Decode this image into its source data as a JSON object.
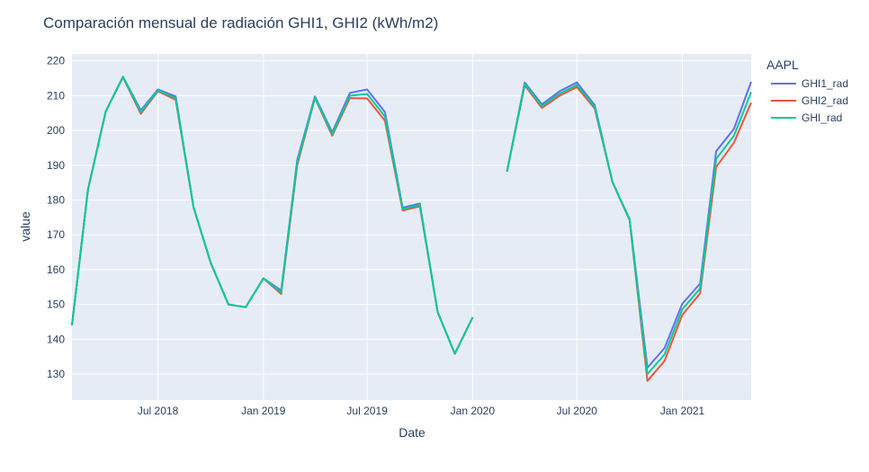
{
  "chart_data": {
    "type": "line",
    "title": "Comparación mensual de radiación GHI1, GHI2 (kWh/m2)",
    "xlabel": "Date",
    "ylabel": "value",
    "legend_title": "AAPL",
    "legend_position": "top-right",
    "xlim": [
      "2018-02-01",
      "2021-05-01"
    ],
    "ylim": [
      122.5,
      222
    ],
    "x_ticks": [
      {
        "date": "2018-07-01",
        "label": "Jul 2018"
      },
      {
        "date": "2019-01-01",
        "label": "Jan 2019"
      },
      {
        "date": "2019-07-01",
        "label": "Jul 2019"
      },
      {
        "date": "2020-01-01",
        "label": "Jan 2020"
      },
      {
        "date": "2020-07-01",
        "label": "Jul 2020"
      },
      {
        "date": "2021-01-01",
        "label": "Jan 2021"
      }
    ],
    "y_ticks": [
      130,
      140,
      150,
      160,
      170,
      180,
      190,
      200,
      210,
      220
    ],
    "grid": true,
    "plot_background": "#e5ecf6",
    "x": [
      "2018-02-01",
      "2018-03-01",
      "2018-04-01",
      "2018-05-01",
      "2018-06-01",
      "2018-07-01",
      "2018-08-01",
      "2018-09-01",
      "2018-10-01",
      "2018-11-01",
      "2018-12-01",
      "2019-01-01",
      "2019-02-01",
      "2019-03-01",
      "2019-04-01",
      "2019-05-01",
      "2019-06-01",
      "2019-07-01",
      "2019-08-01",
      "2019-09-01",
      "2019-10-01",
      "2019-11-01",
      "2019-12-01",
      "2020-01-01",
      "2020-02-01",
      "2020-03-01",
      "2020-04-01",
      "2020-05-01",
      "2020-06-01",
      "2020-07-01",
      "2020-08-01",
      "2020-09-01",
      "2020-10-01",
      "2020-11-01",
      "2020-12-01",
      "2021-01-01",
      "2021-02-01",
      "2021-03-01",
      "2021-04-01",
      "2021-05-01"
    ],
    "series": [
      {
        "name": "GHI1_rad",
        "color": "#636efa",
        "values": [
          144,
          183,
          205.5,
          215.5,
          205.8,
          211.8,
          209.8,
          178,
          162,
          150,
          149.2,
          157.5,
          154,
          191.5,
          209.8,
          199.5,
          210.8,
          211.8,
          205.3,
          177.8,
          179,
          147.8,
          135.8,
          146.3,
          null,
          188.2,
          213.8,
          207.5,
          211.3,
          213.8,
          207.3,
          185.2,
          174.5,
          131.8,
          137.5,
          150.2,
          156,
          194,
          200.5,
          214
        ]
      },
      {
        "name": "GHI2_rad",
        "color": "#ef553b",
        "values": [
          144,
          183,
          205.5,
          215.3,
          204.8,
          211.3,
          208.8,
          178,
          162,
          150,
          149.2,
          157.5,
          153,
          190,
          209.3,
          198.5,
          209.3,
          209.2,
          202.8,
          177,
          178.2,
          147.8,
          135.8,
          146.3,
          null,
          188.2,
          213,
          206.5,
          210,
          212.5,
          206.3,
          185.2,
          174.2,
          128,
          133.8,
          147,
          153.2,
          189.5,
          196.5,
          208
        ]
      },
      {
        "name": "GHI_rad",
        "color": "#00cc96",
        "values": [
          144,
          183,
          205.5,
          215.4,
          205.3,
          211.5,
          209.3,
          178,
          162,
          150,
          149.2,
          157.5,
          153.5,
          190.8,
          209.5,
          199,
          210,
          210.5,
          204,
          177.4,
          178.6,
          147.8,
          135.8,
          146.3,
          null,
          188.2,
          213.4,
          207,
          210.6,
          213.1,
          206.8,
          185.2,
          174.3,
          130,
          135.6,
          148.6,
          154.6,
          191.8,
          198.5,
          211
        ]
      }
    ]
  }
}
